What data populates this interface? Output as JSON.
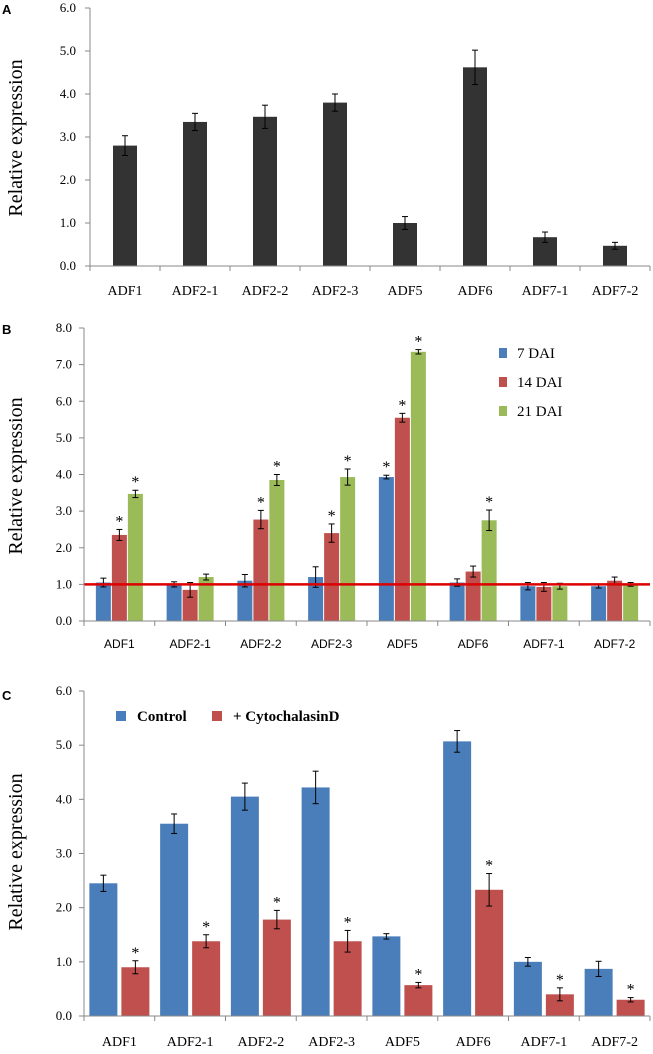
{
  "figure": {
    "panels": [
      {
        "label": "A"
      },
      {
        "label": "B"
      },
      {
        "label": "C"
      }
    ]
  },
  "chart_data": [
    {
      "panel": "A",
      "type": "bar",
      "title": "",
      "xlabel": "",
      "ylabel": "Relative expression",
      "ylim": [
        0,
        6
      ],
      "yticks": [
        "0.0",
        "1.0",
        "2.0",
        "3.0",
        "4.0",
        "5.0",
        "6.0"
      ],
      "categories": [
        "ADF1",
        "ADF2-1",
        "ADF2-2",
        "ADF2-3",
        "ADF5",
        "ADF6",
        "ADF7-1",
        "ADF7-2"
      ],
      "series": [
        {
          "name": "",
          "color": "#333333",
          "values": [
            2.8,
            3.35,
            3.47,
            3.8,
            1.0,
            4.62,
            0.67,
            0.47
          ],
          "errors": [
            0.23,
            0.2,
            0.27,
            0.2,
            0.15,
            0.4,
            0.12,
            0.08
          ]
        }
      ]
    },
    {
      "panel": "B",
      "type": "bar",
      "title": "",
      "xlabel": "",
      "ylabel": "Relative expression",
      "ylim": [
        0,
        8
      ],
      "yticks": [
        "0.0",
        "1.0",
        "2.0",
        "3.0",
        "4.0",
        "5.0",
        "6.0",
        "7.0",
        "8.0"
      ],
      "categories": [
        "ADF1",
        "ADF2-1",
        "ADF2-2",
        "ADF2-3",
        "ADF5",
        "ADF6",
        "ADF7-1",
        "ADF7-2"
      ],
      "reference_line": {
        "y": 1.0,
        "color": "#dd0000"
      },
      "legend_position": "top-right",
      "series": [
        {
          "name": "7 DAI",
          "color": "#4a7ebb",
          "values": [
            1.05,
            1.0,
            1.1,
            1.2,
            3.93,
            1.05,
            0.95,
            0.95
          ],
          "errors": [
            0.12,
            0.07,
            0.17,
            0.28,
            0.05,
            0.1,
            0.1,
            0.05
          ],
          "stars": [
            "",
            "",
            "",
            "",
            "*",
            "",
            "",
            ""
          ]
        },
        {
          "name": "14 DAI",
          "color": "#c0504d",
          "values": [
            2.35,
            0.85,
            2.77,
            2.4,
            5.55,
            1.35,
            0.93,
            1.1
          ],
          "errors": [
            0.15,
            0.2,
            0.25,
            0.25,
            0.12,
            0.15,
            0.12,
            0.1
          ],
          "stars": [
            "*",
            "",
            "*",
            "*",
            "*",
            "",
            "",
            ""
          ]
        },
        {
          "name": "21 DAI",
          "color": "#9bbb59",
          "values": [
            3.47,
            1.2,
            3.85,
            3.93,
            7.35,
            2.75,
            0.95,
            1.0
          ],
          "errors": [
            0.1,
            0.08,
            0.15,
            0.22,
            0.06,
            0.28,
            0.08,
            0.05
          ],
          "stars": [
            "*",
            "",
            "*",
            "*",
            "*",
            "*",
            "",
            ""
          ]
        }
      ]
    },
    {
      "panel": "C",
      "type": "bar",
      "title": "",
      "xlabel": "",
      "ylabel": "Relative expression",
      "ylim": [
        0,
        6
      ],
      "yticks": [
        "0.0",
        "1.0",
        "2.0",
        "3.0",
        "4.0",
        "5.0",
        "6.0"
      ],
      "categories": [
        "ADF1",
        "ADF2-1",
        "ADF2-2",
        "ADF2-3",
        "ADF5",
        "ADF6",
        "ADF7-1",
        "ADF7-2"
      ],
      "legend_position": "top-left",
      "series": [
        {
          "name": "Control",
          "color": "#4a7ebb",
          "values": [
            2.45,
            3.55,
            4.05,
            4.22,
            1.47,
            5.07,
            1.0,
            0.87
          ],
          "errors": [
            0.15,
            0.18,
            0.25,
            0.3,
            0.05,
            0.2,
            0.08,
            0.14
          ],
          "stars": [
            "",
            "",
            "",
            "",
            "",
            "",
            "",
            ""
          ]
        },
        {
          "name": "+ CytochalasinD",
          "color": "#c0504d",
          "values": [
            0.9,
            1.38,
            1.78,
            1.38,
            0.57,
            2.33,
            0.4,
            0.3
          ],
          "errors": [
            0.12,
            0.12,
            0.17,
            0.2,
            0.05,
            0.3,
            0.12,
            0.04
          ],
          "stars": [
            "*",
            "*",
            "*",
            "*",
            "*",
            "*",
            "*",
            "*"
          ]
        }
      ]
    }
  ]
}
